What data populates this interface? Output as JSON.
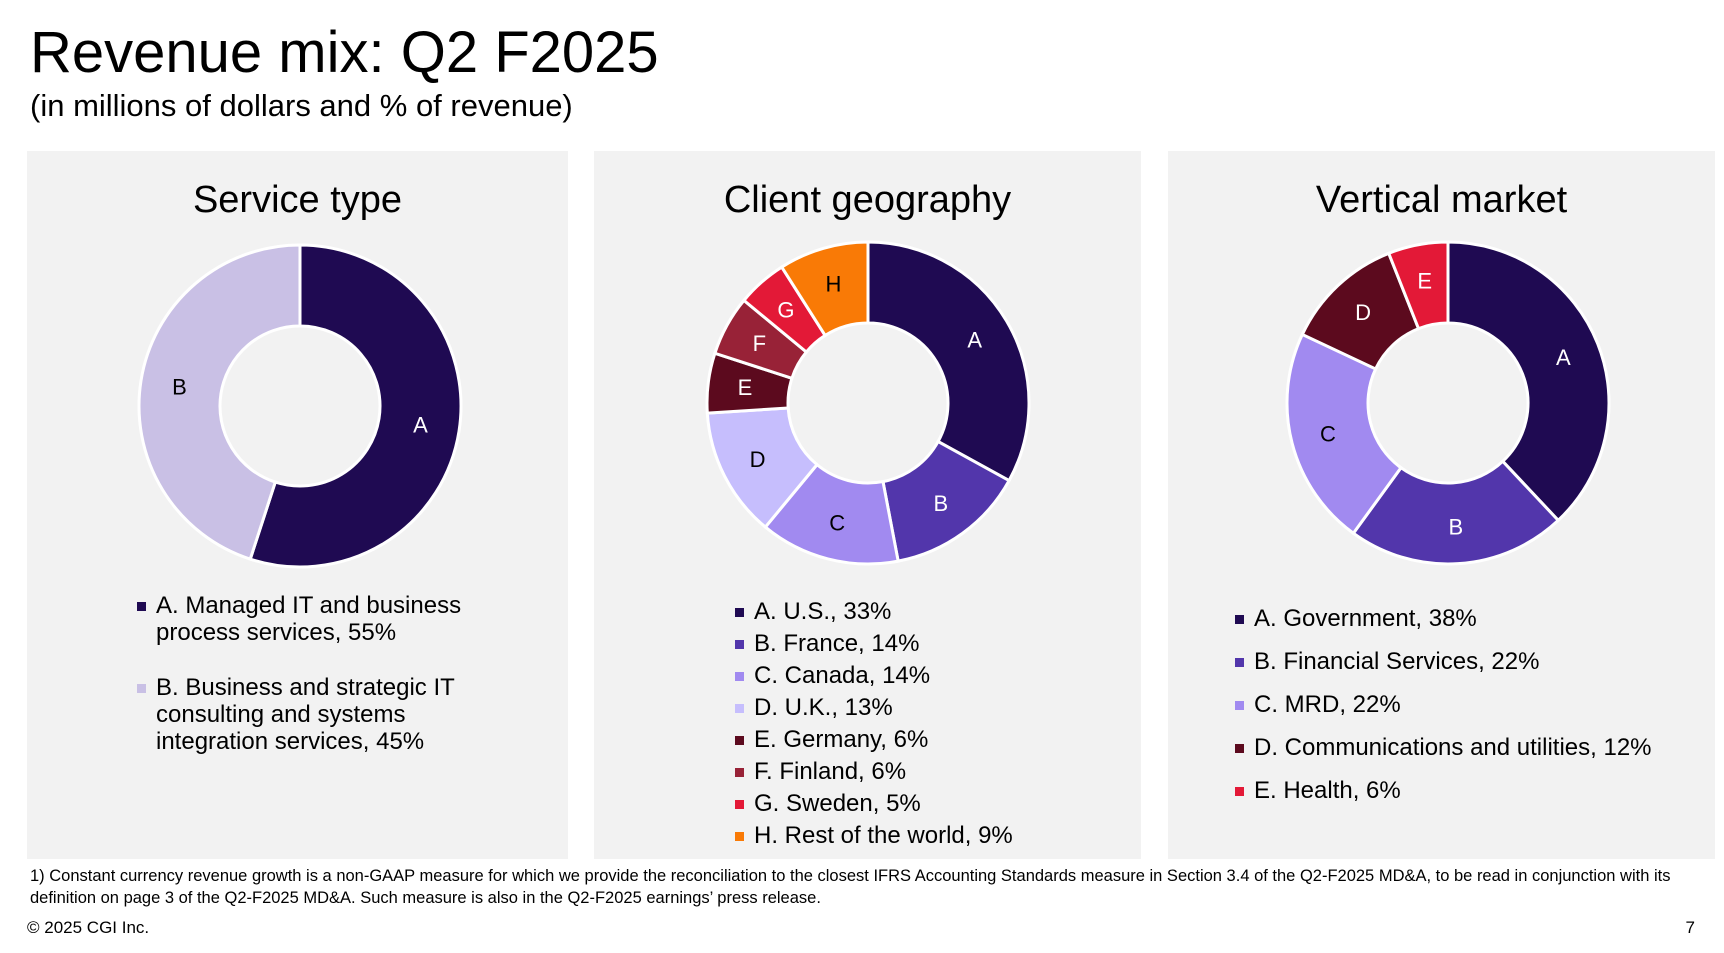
{
  "page": {
    "title": "Revenue mix: Q2 F2025",
    "subtitle": "(in millions of dollars and % of revenue)",
    "footnote": "1) Constant currency revenue growth is a non-GAAP measure for which we provide the reconciliation to the closest IFRS Accounting Standards measure in Section 3.4 of the Q2-F2025 MD&A, to be read in conjunction with its definition on page 3 of the Q2-F2025 MD&A. Such measure is also in the Q2-F2025 earnings’ press release.",
    "copyright": "© 2025 CGI Inc.",
    "page_number": "7"
  },
  "chart_data": [
    {
      "type": "pie",
      "title": "Service type",
      "slices": [
        {
          "label": "A",
          "legend": [
            "A. Managed IT and business",
            "process services, 55%"
          ],
          "value": 55,
          "color": "#1f0a52",
          "label_color": "#ffffff"
        },
        {
          "label": "B",
          "legend": [
            "B. Business and strategic IT",
            "consulting and systems",
            "integration services, 45%"
          ],
          "value": 45,
          "color": "#c9c0e5",
          "label_color": "#000000"
        }
      ]
    },
    {
      "type": "pie",
      "title": "Client geography",
      "slices": [
        {
          "label": "A",
          "legend": [
            "A. U.S., 33%"
          ],
          "value": 33,
          "color": "#1f0a52",
          "label_color": "#ffffff"
        },
        {
          "label": "B",
          "legend": [
            "B. France, 14%"
          ],
          "value": 14,
          "color": "#5236ab",
          "label_color": "#ffffff"
        },
        {
          "label": "C",
          "legend": [
            "C. Canada, 14%"
          ],
          "value": 14,
          "color": "#a18af0",
          "label_color": "#000000"
        },
        {
          "label": "D",
          "legend": [
            "D. U.K., 13%"
          ],
          "value": 13,
          "color": "#c6befd",
          "label_color": "#000000"
        },
        {
          "label": "E",
          "legend": [
            "E. Germany, 6%"
          ],
          "value": 6,
          "color": "#5c0a1e",
          "label_color": "#ffffff"
        },
        {
          "label": "F",
          "legend": [
            "F. Finland, 6%"
          ],
          "value": 6,
          "color": "#982237",
          "label_color": "#ffffff"
        },
        {
          "label": "G",
          "legend": [
            "G. Sweden, 5%"
          ],
          "value": 5,
          "color": "#e31937",
          "label_color": "#ffffff"
        },
        {
          "label": "H",
          "legend": [
            "H. Rest of the world, 9%"
          ],
          "value": 9,
          "color": "#f97a06",
          "label_color": "#000000"
        }
      ]
    },
    {
      "type": "pie",
      "title": "Vertical market",
      "slices": [
        {
          "label": "A",
          "legend": [
            "A. Government, 38%"
          ],
          "value": 38,
          "color": "#1f0a52",
          "label_color": "#ffffff"
        },
        {
          "label": "B",
          "legend": [
            "B. Financial Services, 22%"
          ],
          "value": 22,
          "color": "#5236ab",
          "label_color": "#ffffff"
        },
        {
          "label": "C",
          "legend": [
            "C. MRD, 22%"
          ],
          "value": 22,
          "color": "#a18af0",
          "label_color": "#000000"
        },
        {
          "label": "D",
          "legend": [
            "D. Communications and utilities, 12%"
          ],
          "value": 12,
          "color": "#5c0a1e",
          "label_color": "#ffffff"
        },
        {
          "label": "E",
          "legend": [
            "E. Health, 6%"
          ],
          "value": 6,
          "color": "#e31937",
          "label_color": "#ffffff"
        }
      ]
    }
  ]
}
